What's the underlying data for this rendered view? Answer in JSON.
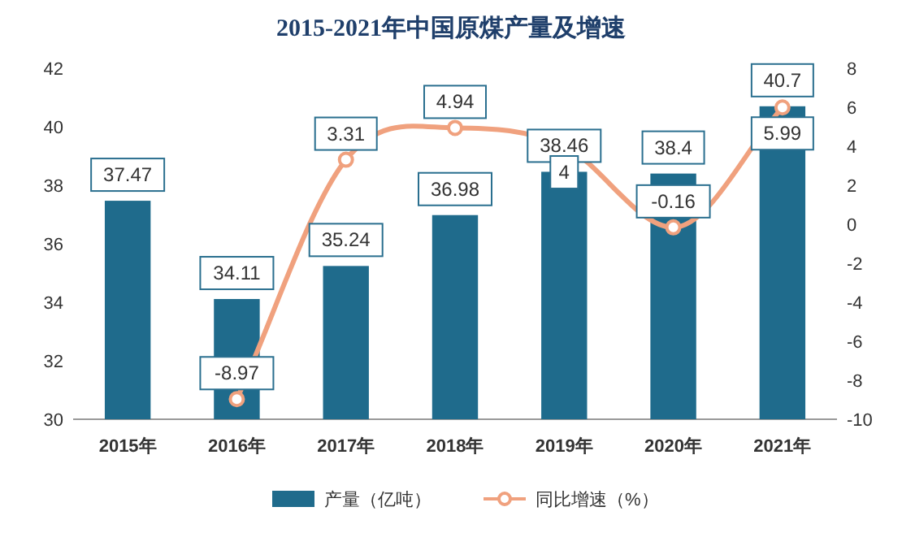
{
  "chart_data": {
    "type": "bar",
    "title": "2015-2021年中国原煤产量及增速",
    "categories": [
      "2015年",
      "2016年",
      "2017年",
      "2018年",
      "2019年",
      "2020年",
      "2021年"
    ],
    "series": [
      {
        "name": "产量（亿吨）",
        "color": "#1f6b8c",
        "values": [
          37.47,
          34.11,
          35.24,
          36.98,
          38.46,
          38.4,
          40.7
        ]
      },
      {
        "name": "同比增速（%）",
        "type": "line",
        "axis": "y2",
        "color": "#f0a17e",
        "values": [
          null,
          -8.97,
          3.31,
          4.94,
          4,
          -0.16,
          5.99
        ]
      }
    ],
    "ylim": [
      30,
      42
    ],
    "yticks": [
      30,
      32,
      34,
      36,
      38,
      40,
      42
    ],
    "y2lim": [
      -10,
      8
    ],
    "y2ticks": [
      -10,
      -8,
      -6,
      -4,
      -2,
      0,
      2,
      4,
      6,
      8
    ],
    "data_labels": true,
    "legend": "bottom",
    "marker": "circle",
    "grid": false
  }
}
